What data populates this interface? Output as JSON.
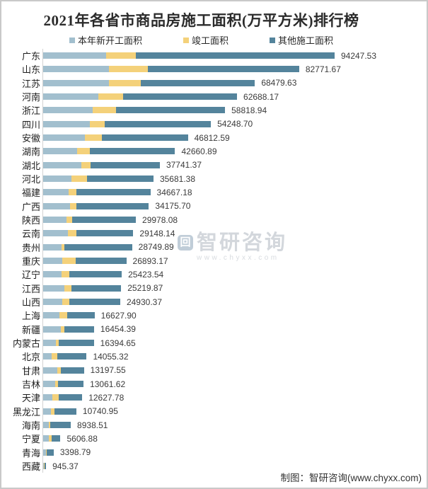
{
  "header": {
    "title": "2021年各省市商品房施工面积(万平方米)排行榜"
  },
  "watermark": {
    "logo_glyph": "回",
    "brand": "智研咨询",
    "site": "www.chyxx.com"
  },
  "footer": {
    "credit": "制图：智研咨询(www.chyxx.com)"
  },
  "chart_data": {
    "type": "bar",
    "orientation": "horizontal",
    "stacked": true,
    "title": "2021年各省市商品房施工面积(万平方米)排行榜",
    "unit": "万平方米",
    "legend_position": "top",
    "grid": false,
    "xlim": [
      0,
      94247.53
    ],
    "categories": [
      "广东",
      "山东",
      "江苏",
      "河南",
      "浙江",
      "四川",
      "安徽",
      "湖南",
      "湖北",
      "河北",
      "福建",
      "广西",
      "陕西",
      "云南",
      "贵州",
      "重庆",
      "辽宁",
      "江西",
      "山西",
      "上海",
      "新疆",
      "内蒙古",
      "北京",
      "甘肃",
      "吉林",
      "天津",
      "黑龙江",
      "海南",
      "宁夏",
      "青海",
      "西藏"
    ],
    "totals": [
      "94247.53",
      "82771.67",
      "68479.63",
      "62688.17",
      "58818.94",
      "54248.70",
      "46812.59",
      "42660.89",
      "37741.37",
      "35681.38",
      "34667.18",
      "34175.70",
      "29978.08",
      "29148.14",
      "28749.89",
      "26893.17",
      "25423.54",
      "25219.87",
      "24930.37",
      "16627.90",
      "16454.39",
      "16394.65",
      "14055.32",
      "13197.55",
      "13061.62",
      "12627.78",
      "10740.95",
      "8938.51",
      "5606.88",
      "3398.79",
      "945.37"
    ],
    "series": [
      {
        "name": "本年新开工面积",
        "color": "#a2bfce",
        "values": [
          20470,
          21380,
          21380,
          17800,
          16030,
          15040,
          13600,
          11080,
          12360,
          9160,
          8240,
          8790,
          7500,
          7950,
          5880,
          6110,
          5880,
          6800,
          6110,
          5200,
          5650,
          4050,
          2680,
          4510,
          3820,
          2910,
          2450,
          1760,
          1760,
          960,
          230
        ]
      },
      {
        "name": "竣工面积",
        "color": "#f4d17a",
        "values": [
          9520,
          12550,
          10300,
          8150,
          7480,
          4970,
          5330,
          3960,
          2910,
          4970,
          2610,
          2060,
          1830,
          2750,
          920,
          4350,
          2520,
          2290,
          2290,
          2520,
          1140,
          920,
          1830,
          1140,
          920,
          2060,
          1140,
          460,
          920,
          230,
          115
        ]
      },
      {
        "name": "其他施工面积",
        "color": "#54849c",
        "values": [
          64257.53,
          48841.67,
          36799.63,
          36738.17,
          35308.94,
          34238.7,
          27882.59,
          27620.89,
          22471.37,
          21551.38,
          23817.18,
          23325.7,
          20648.08,
          18448.14,
          21949.89,
          16433.17,
          17023.54,
          16129.87,
          16530.37,
          8907.9,
          9664.39,
          11424.65,
          9545.32,
          7547.55,
          8321.62,
          7657.78,
          7150.95,
          6718.51,
          2926.88,
          2208.79,
          600.37
        ]
      }
    ]
  }
}
